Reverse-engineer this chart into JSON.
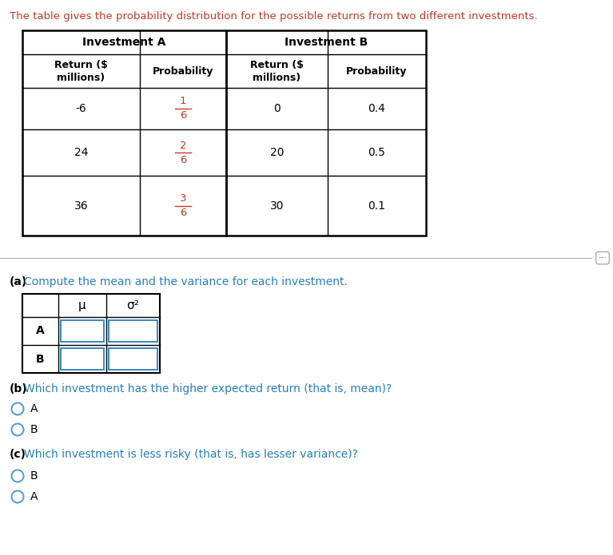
{
  "intro_text": "The table gives the probability distribution for the possible returns from two different investments.",
  "intro_color": "#c0392b",
  "table_header_A": "Investment A",
  "table_header_B": "Investment B",
  "inv_A_returns": [
    "-6",
    "24",
    "36"
  ],
  "inv_A_probs": [
    "1/6",
    "2/6",
    "3/6"
  ],
  "inv_B_returns": [
    "0",
    "20",
    "30"
  ],
  "inv_B_probs": [
    "0.4",
    "0.5",
    "0.1"
  ],
  "frac_color": "#c0392b",
  "part_a_label": "(a)",
  "part_a_text": "Compute the mean and the variance for each investment.",
  "part_a_color": "#2980b9",
  "mu_label": "μ",
  "sigma_label": "σ²",
  "small_table_rows": [
    "A",
    "B"
  ],
  "part_b_label": "(b)",
  "part_b_text": "Which investment has the higher expected return (that is, mean)?",
  "part_b_color": "#2980b9",
  "part_b_options": [
    "A",
    "B"
  ],
  "part_c_label": "(c)",
  "part_c_text": "Which investment is less risky (that is, has lesser variance)?",
  "part_c_color": "#2980b9",
  "part_c_options": [
    "B",
    "A"
  ],
  "radio_color": "#5b9bd5",
  "box_color": "#2980b9",
  "bg_color": "#ffffff",
  "divider_color": "#aaaaaa",
  "text_black": "#000000",
  "label_bold_color": "#000000"
}
